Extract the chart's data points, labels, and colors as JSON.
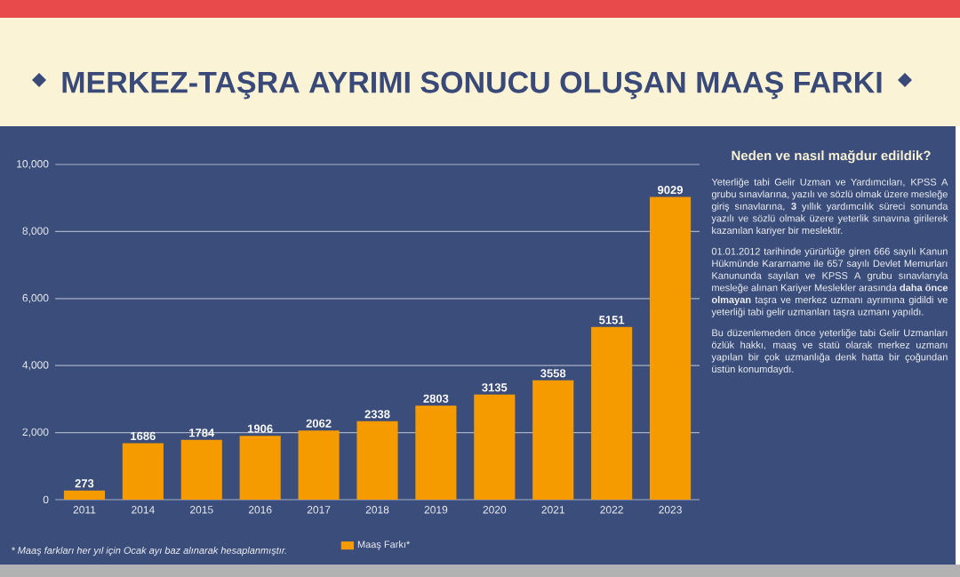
{
  "chart_data": {
    "type": "bar",
    "title": "MERKEZ-TAŞRA AYRIMI SONUCU OLUŞAN MAAŞ FARKI",
    "categories": [
      "2011",
      "2014",
      "2015",
      "2016",
      "2017",
      "2018",
      "2019",
      "2020",
      "2021",
      "2022",
      "2023"
    ],
    "series": [
      {
        "name": "Maaş Farkı*",
        "color": "#f59b00",
        "values": [
          273,
          1686,
          1784,
          1906,
          2062,
          2338,
          2803,
          3135,
          3558,
          5151,
          9029
        ]
      }
    ],
    "ylim": [
      0,
      10000
    ],
    "yticks": [
      0,
      {
        "value": 2000,
        "label": "2,000"
      },
      {
        "value": 4000,
        "label": "4,000"
      },
      {
        "value": 6000,
        "label": "6,000"
      },
      {
        "value": 8000,
        "label": "8,000"
      },
      {
        "value": 10000,
        "label": "10,000"
      }
    ],
    "grid": "y",
    "legend": "bottom",
    "data_labels": true,
    "annotations": [
      "Neden ve nasıl mağdur edildik?",
      "Yeterliğe tabi Gelir Uzman ve Yardımcıları, KPSS A grubu sınavlarına, yazılı ve sözlü olmak üzere mesleğe giriş sınavlarına, **3** yıllık yardımcılık süreci sonunda yazılı ve sözlü olmak üzere yeterlik sınavına girilerek kazanılan kariyer bir meslektir.",
      "01.01.2012 tarihinde yürürlüğe giren 666 sayılı Kanun Hükmünde Kararname ile 657 sayılı Devlet Memurları Kanununda sayılan ve KPSS A grubu sınavlarıyla mesleğe alınan Kariyer Meslekler arasında **daha önce olmayan** taşra ve merkez uzmanı ayrımına gidildi ve yeterliği tabi gelir uzmanları taşra uzmanı yapıldı.",
      "Bu düzenlemeden önce yeterliğe tabi Gelir Uzmanları özlük hakkı, maaş ve statü olarak merkez uzmanı yapılan bir çok uzmanlığa denk hatta bir çoğundan üstün konumdaydı.",
      "* Maaş farkları her yıl için Ocak ayı baz alınarak hesaplanmıştır."
    ]
  }
}
